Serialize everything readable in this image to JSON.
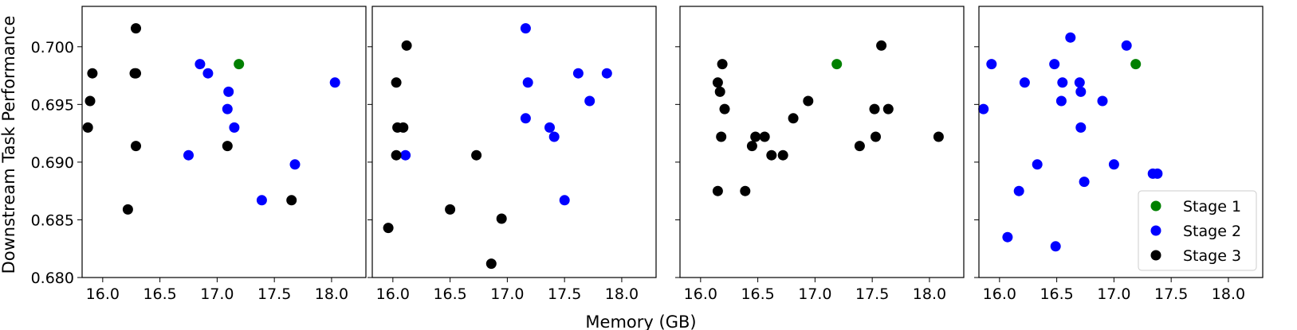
{
  "figure": {
    "xlabel": "Memory (GB)",
    "ylabel": "Downstream Task Performance"
  },
  "chart_data": {
    "type": "scatter",
    "xlabel": "Memory (GB)",
    "ylabel": "Downstream Task Performance",
    "xlim": [
      15.82,
      18.3
    ],
    "ylim": [
      0.68,
      0.7035
    ],
    "xticks": [
      "16.0",
      "16.5",
      "17.0",
      "17.5",
      "18.0"
    ],
    "yticks": [
      "0.680",
      "0.685",
      "0.690",
      "0.695",
      "0.700"
    ],
    "grid": false,
    "colors": {
      "Stage 1": "#008000",
      "Stage 2": "#0000ff",
      "Stage 3": "#000000"
    },
    "legend": {
      "panel": 4,
      "placement": "lower-right",
      "entries": [
        "Stage 1",
        "Stage 2",
        "Stage 3"
      ]
    },
    "panels": [
      {
        "series": [
          {
            "name": "Stage 1",
            "points": [
              [
                17.19,
                0.6985
              ]
            ]
          },
          {
            "name": "Stage 2",
            "points": [
              [
                16.85,
                0.6985
              ],
              [
                16.92,
                0.6977
              ],
              [
                17.1,
                0.6961
              ],
              [
                17.09,
                0.6946
              ],
              [
                17.15,
                0.693
              ],
              [
                16.75,
                0.6906
              ],
              [
                17.68,
                0.6898
              ],
              [
                17.39,
                0.6867
              ],
              [
                18.03,
                0.6969
              ]
            ]
          },
          {
            "name": "Stage 3",
            "points": [
              [
                15.91,
                0.6977
              ],
              [
                15.89,
                0.6953
              ],
              [
                15.87,
                0.693
              ],
              [
                16.29,
                0.7016
              ],
              [
                16.28,
                0.6977
              ],
              [
                16.29,
                0.6977
              ],
              [
                16.29,
                0.6914
              ],
              [
                16.22,
                0.6859
              ],
              [
                17.09,
                0.6914
              ],
              [
                17.65,
                0.6867
              ]
            ]
          }
        ]
      },
      {
        "series": [
          {
            "name": "Stage 2",
            "points": [
              [
                17.16,
                0.7016
              ],
              [
                17.18,
                0.6969
              ],
              [
                17.62,
                0.6977
              ],
              [
                17.87,
                0.6977
              ],
              [
                17.72,
                0.6953
              ],
              [
                17.16,
                0.6938
              ],
              [
                17.37,
                0.693
              ],
              [
                17.41,
                0.6922
              ],
              [
                16.11,
                0.6906
              ],
              [
                17.5,
                0.6867
              ]
            ]
          },
          {
            "name": "Stage 3",
            "points": [
              [
                16.12,
                0.7001
              ],
              [
                16.03,
                0.6969
              ],
              [
                16.04,
                0.693
              ],
              [
                16.09,
                0.693
              ],
              [
                16.03,
                0.6906
              ],
              [
                16.73,
                0.6906
              ],
              [
                16.5,
                0.6859
              ],
              [
                16.95,
                0.6851
              ],
              [
                15.96,
                0.6843
              ],
              [
                16.86,
                0.6812
              ]
            ]
          }
        ]
      },
      {
        "series": [
          {
            "name": "Stage 1",
            "points": [
              [
                17.19,
                0.6985
              ]
            ]
          },
          {
            "name": "Stage 3",
            "points": [
              [
                17.58,
                0.7001
              ],
              [
                16.19,
                0.6985
              ],
              [
                16.15,
                0.6969
              ],
              [
                16.17,
                0.6961
              ],
              [
                16.21,
                0.6946
              ],
              [
                16.94,
                0.6953
              ],
              [
                17.52,
                0.6946
              ],
              [
                17.64,
                0.6946
              ],
              [
                16.81,
                0.6938
              ],
              [
                16.18,
                0.6922
              ],
              [
                16.48,
                0.6922
              ],
              [
                16.56,
                0.6922
              ],
              [
                17.53,
                0.6922
              ],
              [
                18.08,
                0.6922
              ],
              [
                16.45,
                0.6914
              ],
              [
                17.39,
                0.6914
              ],
              [
                16.62,
                0.6906
              ],
              [
                16.72,
                0.6906
              ],
              [
                16.15,
                0.6875
              ],
              [
                16.39,
                0.6875
              ]
            ]
          }
        ]
      },
      {
        "series": [
          {
            "name": "Stage 1",
            "points": [
              [
                17.19,
                0.6985
              ]
            ]
          },
          {
            "name": "Stage 2",
            "points": [
              [
                16.62,
                0.7008
              ],
              [
                17.11,
                0.7001
              ],
              [
                15.93,
                0.6985
              ],
              [
                16.48,
                0.6985
              ],
              [
                16.22,
                0.6969
              ],
              [
                16.55,
                0.6969
              ],
              [
                16.7,
                0.6969
              ],
              [
                16.71,
                0.6961
              ],
              [
                16.54,
                0.6953
              ],
              [
                16.9,
                0.6953
              ],
              [
                15.86,
                0.6946
              ],
              [
                16.71,
                0.693
              ],
              [
                16.33,
                0.6898
              ],
              [
                17.0,
                0.6898
              ],
              [
                17.34,
                0.689
              ],
              [
                17.38,
                0.689
              ],
              [
                16.74,
                0.6883
              ],
              [
                16.17,
                0.6875
              ],
              [
                16.07,
                0.6835
              ],
              [
                16.49,
                0.6827
              ]
            ]
          }
        ]
      }
    ]
  }
}
